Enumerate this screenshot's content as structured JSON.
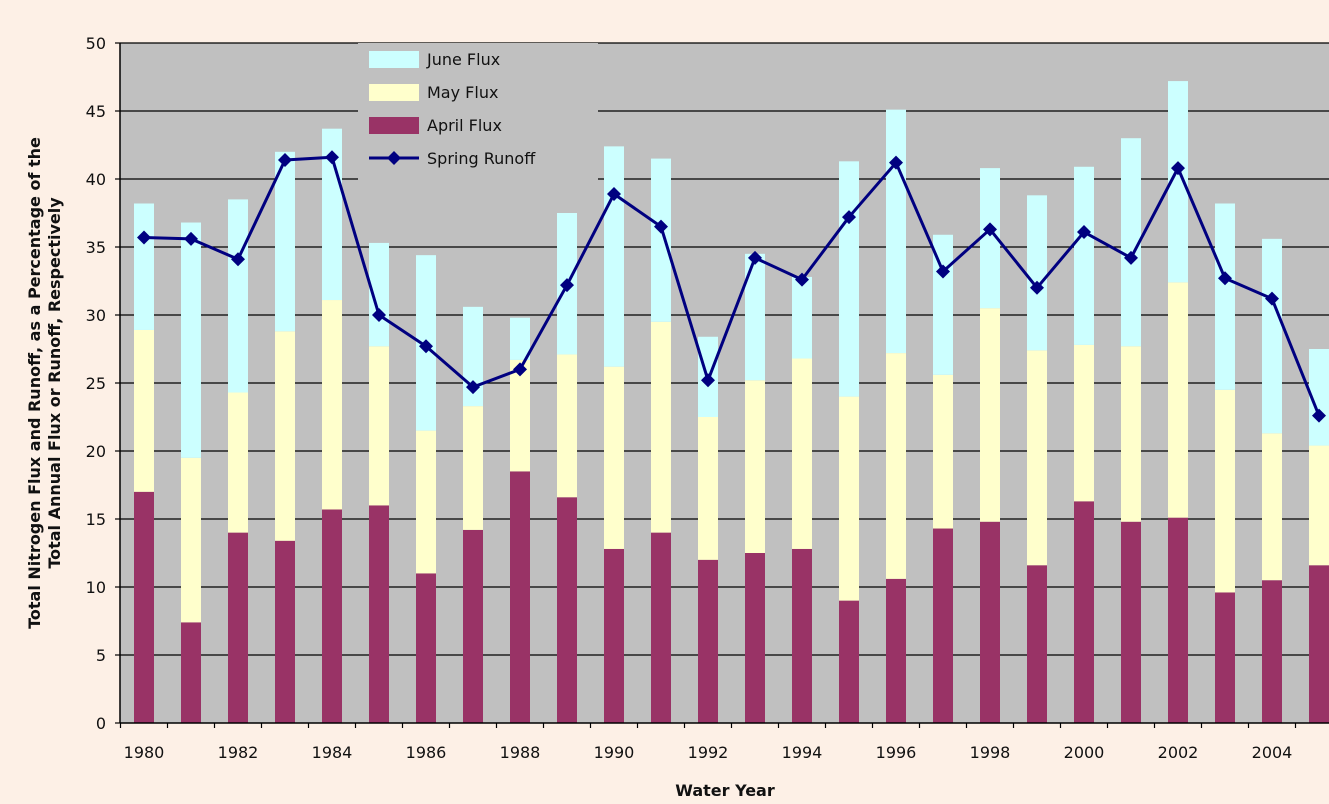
{
  "chart_data": {
    "type": "bar",
    "stacked": true,
    "xlabel": "Water Year",
    "ylabel_line1": "Total Nitrogen Flux and Runoff, as a Percentage of the",
    "ylabel_line2": "Total Annual Flux or Runoff, Respectively",
    "ylim": [
      0,
      50
    ],
    "yticks": [
      0,
      5,
      10,
      15,
      20,
      25,
      30,
      35,
      40,
      45,
      50
    ],
    "xtick_labels": [
      "1980",
      "1982",
      "1984",
      "1986",
      "1988",
      "1990",
      "1992",
      "1994",
      "1996",
      "1998",
      "2000",
      "2002",
      "2004"
    ],
    "grid": true,
    "legend_position": "top-left",
    "categories": [
      "1980",
      "1981",
      "1982",
      "1983",
      "1984",
      "1985",
      "1986",
      "1987",
      "1988",
      "1989",
      "1990",
      "1991",
      "1992",
      "1993",
      "1994",
      "1995",
      "1996",
      "1997",
      "1998",
      "1999",
      "2000",
      "2001",
      "2002",
      "2003",
      "2004",
      "2005"
    ],
    "series": [
      {
        "name": "April Flux",
        "kind": "bar",
        "color": "#993366",
        "values": [
          17.0,
          7.4,
          14.0,
          13.4,
          15.7,
          16.0,
          11.0,
          14.2,
          18.5,
          16.6,
          12.8,
          14.0,
          12.0,
          12.5,
          12.8,
          9.0,
          10.6,
          14.3,
          14.8,
          11.6,
          16.3,
          14.8,
          15.1,
          9.6,
          10.5,
          11.6
        ]
      },
      {
        "name": "May Flux",
        "kind": "bar",
        "color": "#ffffcc",
        "values": [
          11.9,
          12.1,
          10.3,
          15.4,
          15.4,
          11.7,
          10.5,
          9.1,
          8.2,
          10.5,
          13.4,
          15.5,
          10.5,
          12.7,
          14.0,
          15.0,
          16.6,
          11.3,
          15.7,
          15.8,
          11.5,
          12.9,
          17.3,
          14.9,
          10.8,
          8.8
        ]
      },
      {
        "name": "June Flux",
        "kind": "bar",
        "color": "#ccffff",
        "values": [
          9.3,
          17.3,
          14.2,
          13.2,
          12.6,
          7.6,
          12.9,
          7.3,
          3.1,
          10.4,
          16.2,
          12.0,
          5.9,
          9.3,
          6.0,
          17.3,
          17.9,
          10.3,
          10.3,
          11.4,
          13.1,
          15.3,
          14.8,
          13.7,
          14.3,
          7.1
        ]
      },
      {
        "name": "Spring Runoff",
        "kind": "line",
        "color": "#000080",
        "values": [
          35.7,
          35.6,
          34.1,
          41.4,
          41.6,
          30.0,
          27.7,
          24.7,
          26.0,
          32.2,
          38.9,
          36.5,
          25.2,
          34.2,
          32.6,
          37.2,
          41.2,
          33.2,
          36.3,
          32.0,
          36.1,
          34.2,
          40.8,
          32.7,
          31.2,
          22.6
        ]
      }
    ]
  }
}
